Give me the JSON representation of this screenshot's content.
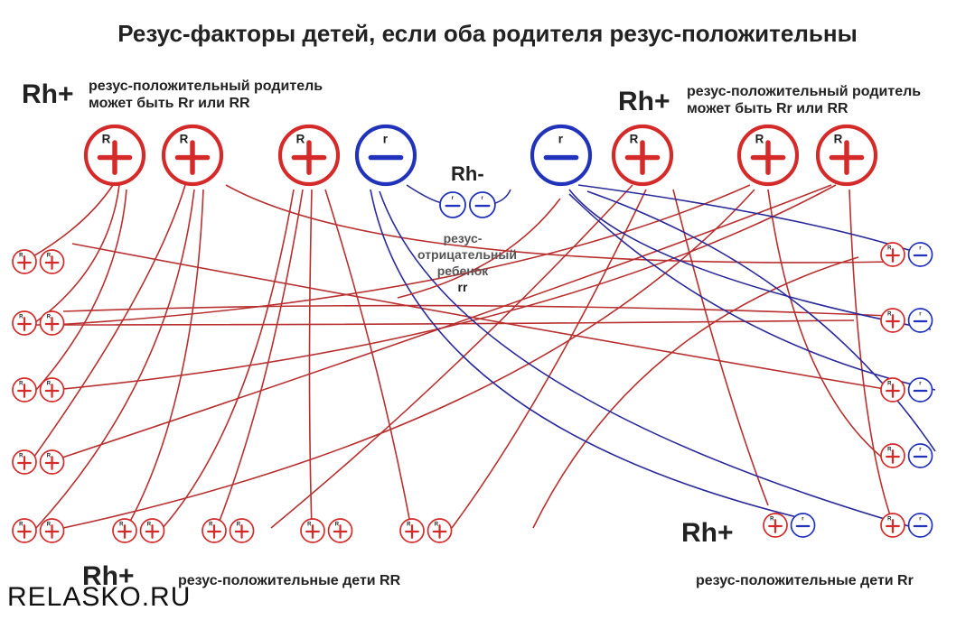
{
  "title": "Резус-факторы детей, если оба родителя резус-положительны",
  "parent_left": {
    "badge": "Rh+",
    "line1": "резус-положительный родитель",
    "line2": "может быть Rr или RR"
  },
  "parent_right": {
    "badge": "Rh+",
    "line1": "резус-положительный родитель",
    "line2": "может быть Rr или RR"
  },
  "rh_negative": {
    "badge": "Rh-",
    "line1": "резус-",
    "line2": "отрицательный",
    "line3": "ребенок",
    "genotype": "rr"
  },
  "bottom_left": {
    "badge": "Rh+",
    "caption": "резус-положительные дети RR"
  },
  "bottom_right": {
    "badge": "Rh+",
    "caption": "резус-положительные дети Rr"
  },
  "watermark": "RELASKO.RU",
  "allele_labels": {
    "dominant": "R",
    "recessive": "r"
  },
  "colors": {
    "dominant": "#d42a2a",
    "recessive": "#2233bb",
    "dominant_line": "#b83030",
    "recessive_line": "#2a2a9a"
  }
}
